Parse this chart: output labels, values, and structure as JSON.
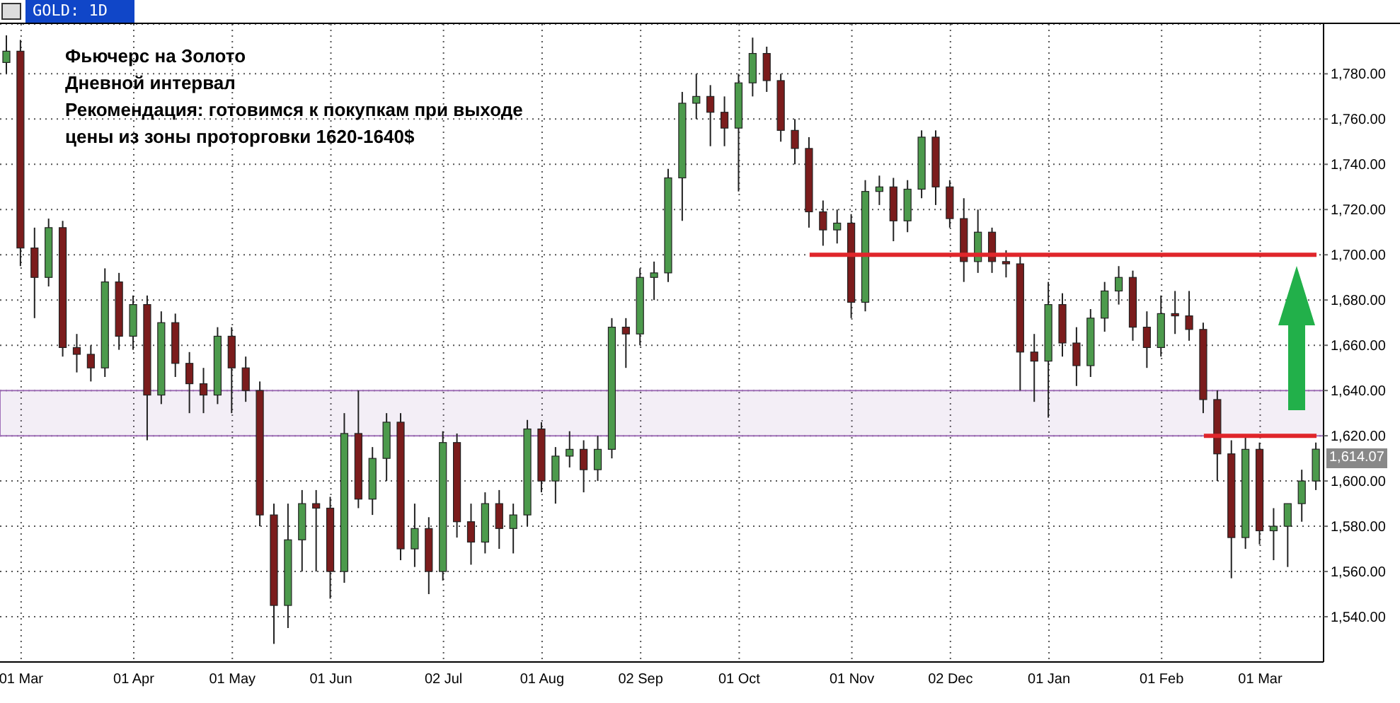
{
  "chart_data": {
    "type": "candlestick",
    "title": "GOLD: 1D",
    "annotations": [
      "Фьючерс на Золото",
      "Дневной интервал",
      "Рекомендация: готовимся к покупкам при выходе",
      "цены из зоны проторговки 1620-1640$",
      "1,614.07"
    ],
    "categories": [
      null,
      "01 Mar",
      null,
      null,
      null,
      null,
      null,
      null,
      null,
      "01 Apr",
      null,
      null,
      null,
      null,
      null,
      null,
      "01 May",
      null,
      null,
      null,
      null,
      null,
      null,
      "01 Jun",
      null,
      null,
      null,
      null,
      null,
      null,
      null,
      "02 Jul",
      null,
      null,
      null,
      null,
      null,
      null,
      "01 Aug",
      null,
      null,
      null,
      null,
      null,
      null,
      "02 Sep",
      null,
      null,
      null,
      null,
      null,
      null,
      "01 Oct",
      null,
      null,
      null,
      null,
      null,
      null,
      null,
      "01 Nov",
      null,
      null,
      null,
      null,
      null,
      null,
      "02 Dec",
      null,
      null,
      null,
      null,
      null,
      null,
      "01 Jan",
      null,
      null,
      null,
      null,
      null,
      null,
      null,
      "01 Feb",
      null,
      null,
      null,
      null,
      null,
      null,
      "01 Mar",
      null,
      null,
      null,
      null
    ],
    "ohlc": [
      [
        1785,
        1797,
        1780,
        1790
      ],
      [
        1790,
        1795,
        1695,
        1703
      ],
      [
        1703,
        1712,
        1672,
        1690
      ],
      [
        1690,
        1716,
        1686,
        1712
      ],
      [
        1712,
        1715,
        1655,
        1659
      ],
      [
        1659,
        1665,
        1648,
        1656
      ],
      [
        1656,
        1660,
        1644,
        1650
      ],
      [
        1650,
        1694,
        1646,
        1688
      ],
      [
        1688,
        1692,
        1658,
        1664
      ],
      [
        1664,
        1682,
        1658,
        1678
      ],
      [
        1678,
        1682,
        1618,
        1638
      ],
      [
        1638,
        1675,
        1634,
        1670
      ],
      [
        1670,
        1674,
        1646,
        1652
      ],
      [
        1652,
        1657,
        1630,
        1643
      ],
      [
        1643,
        1650,
        1630,
        1638
      ],
      [
        1638,
        1668,
        1634,
        1664
      ],
      [
        1664,
        1668,
        1630,
        1650
      ],
      [
        1650,
        1655,
        1635,
        1640
      ],
      [
        1640,
        1644,
        1580,
        1585
      ],
      [
        1585,
        1590,
        1528,
        1545
      ],
      [
        1545,
        1590,
        1535,
        1574
      ],
      [
        1574,
        1596,
        1560,
        1590
      ],
      [
        1590,
        1596,
        1560,
        1588
      ],
      [
        1588,
        1593,
        1548,
        1560
      ],
      [
        1560,
        1630,
        1555,
        1621
      ],
      [
        1621,
        1640,
        1588,
        1592
      ],
      [
        1592,
        1615,
        1585,
        1610
      ],
      [
        1610,
        1630,
        1600,
        1626
      ],
      [
        1626,
        1630,
        1565,
        1570
      ],
      [
        1570,
        1590,
        1562,
        1579
      ],
      [
        1579,
        1584,
        1550,
        1560
      ],
      [
        1560,
        1622,
        1556,
        1617
      ],
      [
        1617,
        1621,
        1575,
        1582
      ],
      [
        1582,
        1590,
        1563,
        1573
      ],
      [
        1573,
        1595,
        1568,
        1590
      ],
      [
        1590,
        1596,
        1570,
        1579
      ],
      [
        1579,
        1590,
        1568,
        1585
      ],
      [
        1585,
        1627,
        1580,
        1623
      ],
      [
        1623,
        1626,
        1595,
        1600
      ],
      [
        1600,
        1615,
        1590,
        1611
      ],
      [
        1611,
        1622,
        1606,
        1614
      ],
      [
        1614,
        1618,
        1595,
        1605
      ],
      [
        1605,
        1620,
        1600,
        1614
      ],
      [
        1614,
        1672,
        1610,
        1668
      ],
      [
        1668,
        1672,
        1650,
        1665
      ],
      [
        1665,
        1694,
        1660,
        1690
      ],
      [
        1690,
        1697,
        1680,
        1692
      ],
      [
        1692,
        1738,
        1688,
        1734
      ],
      [
        1734,
        1772,
        1715,
        1767
      ],
      [
        1767,
        1780,
        1760,
        1770
      ],
      [
        1770,
        1775,
        1748,
        1763
      ],
      [
        1763,
        1770,
        1748,
        1756
      ],
      [
        1756,
        1780,
        1728,
        1776
      ],
      [
        1776,
        1796,
        1770,
        1789
      ],
      [
        1789,
        1792,
        1772,
        1777
      ],
      [
        1777,
        1780,
        1750,
        1755
      ],
      [
        1755,
        1760,
        1740,
        1747
      ],
      [
        1747,
        1752,
        1712,
        1719
      ],
      [
        1719,
        1724,
        1704,
        1711
      ],
      [
        1711,
        1720,
        1705,
        1714
      ],
      [
        1714,
        1718,
        1672,
        1679
      ],
      [
        1679,
        1733,
        1675,
        1728
      ],
      [
        1728,
        1735,
        1722,
        1730
      ],
      [
        1730,
        1734,
        1706,
        1715
      ],
      [
        1715,
        1733,
        1710,
        1729
      ],
      [
        1729,
        1755,
        1725,
        1752
      ],
      [
        1752,
        1755,
        1722,
        1730
      ],
      [
        1730,
        1733,
        1712,
        1716
      ],
      [
        1716,
        1725,
        1688,
        1697
      ],
      [
        1697,
        1720,
        1692,
        1710
      ],
      [
        1710,
        1712,
        1692,
        1697
      ],
      [
        1697,
        1702,
        1690,
        1696
      ],
      [
        1696,
        1700,
        1640,
        1657
      ],
      [
        1657,
        1665,
        1635,
        1653
      ],
      [
        1653,
        1688,
        1628,
        1678
      ],
      [
        1678,
        1683,
        1655,
        1661
      ],
      [
        1661,
        1668,
        1642,
        1651
      ],
      [
        1651,
        1676,
        1646,
        1672
      ],
      [
        1672,
        1688,
        1666,
        1684
      ],
      [
        1684,
        1695,
        1678,
        1690
      ],
      [
        1690,
        1693,
        1662,
        1668
      ],
      [
        1668,
        1675,
        1650,
        1659
      ],
      [
        1659,
        1682,
        1655,
        1674
      ],
      [
        1674,
        1684,
        1665,
        1673
      ],
      [
        1673,
        1684,
        1662,
        1667
      ],
      [
        1667,
        1670,
        1630,
        1636
      ],
      [
        1636,
        1640,
        1600,
        1612
      ],
      [
        1612,
        1618,
        1557,
        1575
      ],
      [
        1575,
        1620,
        1570,
        1614
      ],
      [
        1614,
        1617,
        1572,
        1578
      ],
      [
        1578,
        1588,
        1565,
        1580
      ],
      [
        1580,
        1590,
        1562,
        1590
      ],
      [
        1590,
        1605,
        1582,
        1600
      ],
      [
        1600,
        1617,
        1596,
        1614.07
      ]
    ],
    "colors": [
      "#4c9a4c",
      "#7b1c1c",
      "#7b1c1c",
      "#4c9a4c",
      "#7b1c1c",
      "#7b1c1c",
      "#7b1c1c",
      "#4c9a4c",
      "#7b1c1c",
      "#4c9a4c",
      "#7b1c1c",
      "#4c9a4c",
      "#7b1c1c",
      "#7b1c1c",
      "#7b1c1c",
      "#4c9a4c",
      "#7b1c1c",
      "#7b1c1c",
      "#7b1c1c",
      "#7b1c1c",
      "#4c9a4c",
      "#4c9a4c",
      "#7b1c1c",
      "#7b1c1c",
      "#4c9a4c",
      "#7b1c1c",
      "#4c9a4c",
      "#4c9a4c",
      "#7b1c1c",
      "#4c9a4c",
      "#7b1c1c",
      "#4c9a4c",
      "#7b1c1c",
      "#7b1c1c",
      "#4c9a4c",
      "#7b1c1c",
      "#4c9a4c",
      "#4c9a4c",
      "#7b1c1c",
      "#4c9a4c",
      "#4c9a4c",
      "#7b1c1c",
      "#4c9a4c",
      "#4c9a4c",
      "#7b1c1c",
      "#4c9a4c",
      "#4c9a4c",
      "#4c9a4c",
      "#4c9a4c",
      "#4c9a4c",
      "#7b1c1c",
      "#7b1c1c",
      "#4c9a4c",
      "#4c9a4c",
      "#7b1c1c",
      "#7b1c1c",
      "#7b1c1c",
      "#7b1c1c",
      "#7b1c1c",
      "#4c9a4c",
      "#7b1c1c",
      "#4c9a4c",
      "#4c9a4c",
      "#7b1c1c",
      "#4c9a4c",
      "#4c9a4c",
      "#7b1c1c",
      "#7b1c1c",
      "#7b1c1c",
      "#4c9a4c",
      "#7b1c1c",
      "#7b1c1c",
      "#7b1c1c",
      "#7b1c1c",
      "#4c9a4c",
      "#7b1c1c",
      "#7b1c1c",
      "#4c9a4c",
      "#4c9a4c",
      "#4c9a4c",
      "#7b1c1c",
      "#7b1c1c",
      "#4c9a4c",
      "#7b1c1c",
      "#7b1c1c",
      "#7b1c1c",
      "#7b1c1c",
      "#7b1c1c",
      "#4c9a4c",
      "#7b1c1c",
      "#4c9a4c",
      "#4c9a4c",
      "#4c9a4c",
      "#4c9a4c"
    ],
    "series": [
      {
        "type": "line",
        "color": "#e0262b",
        "values": [
          null,
          null,
          null,
          null,
          null,
          null,
          null,
          null,
          null,
          null,
          null,
          null,
          null,
          null,
          null,
          null,
          null,
          null,
          null,
          null,
          null,
          null,
          null,
          null,
          null,
          null,
          null,
          null,
          null,
          null,
          null,
          null,
          null,
          null,
          null,
          null,
          null,
          null,
          null,
          null,
          null,
          null,
          null,
          null,
          null,
          null,
          null,
          null,
          null,
          null,
          null,
          null,
          null,
          null,
          null,
          null,
          null,
          1700,
          1700,
          1700,
          1700,
          1700,
          1700,
          1700,
          1700,
          1700,
          1700,
          1700,
          1700,
          1700,
          1700,
          1700,
          1700,
          1700,
          1700,
          1700,
          1700,
          1700,
          1700,
          1700,
          1700,
          1700,
          1700,
          1700,
          1700,
          1700,
          1700,
          1700,
          1700,
          1700,
          1700,
          1700,
          1700,
          1700
        ]
      },
      {
        "type": "line",
        "color": "#e0262b",
        "values": [
          null,
          null,
          null,
          null,
          null,
          null,
          null,
          null,
          null,
          null,
          null,
          null,
          null,
          null,
          null,
          null,
          null,
          null,
          null,
          null,
          null,
          null,
          null,
          null,
          null,
          null,
          null,
          null,
          null,
          null,
          null,
          null,
          null,
          null,
          null,
          null,
          null,
          null,
          null,
          null,
          null,
          null,
          null,
          null,
          null,
          null,
          null,
          null,
          null,
          null,
          null,
          null,
          null,
          null,
          null,
          null,
          null,
          null,
          null,
          null,
          null,
          null,
          null,
          null,
          null,
          null,
          null,
          null,
          null,
          null,
          null,
          null,
          null,
          null,
          null,
          null,
          null,
          null,
          null,
          null,
          null,
          null,
          null,
          null,
          null,
          1620,
          1620,
          1620,
          1620,
          1620,
          1620,
          1620,
          1620,
          1620
        ]
      }
    ],
    "bands": [
      {
        "axis": "y",
        "from": 1620,
        "to": 1640,
        "color": "#a070b8"
      }
    ],
    "ylim": [
      1520,
      1802
    ],
    "yticks": [
      {
        "value": 1540,
        "label": "1,540.00"
      },
      {
        "value": 1560,
        "label": "1,560.00"
      },
      {
        "value": 1580,
        "label": "1,580.00"
      },
      {
        "value": 1600,
        "label": "1,600.00"
      },
      {
        "value": 1620,
        "label": "1,620.00"
      },
      {
        "value": 1640,
        "label": "1,640.00"
      },
      {
        "value": 1660,
        "label": "1,660.00"
      },
      {
        "value": 1680,
        "label": "1,680.00"
      },
      {
        "value": 1700,
        "label": "1,700.00"
      },
      {
        "value": 1720,
        "label": "1,720.00"
      },
      {
        "value": 1740,
        "label": "1,740.00"
      },
      {
        "value": 1760,
        "label": "1,760.00"
      },
      {
        "value": 1780,
        "label": "1,780.00"
      }
    ],
    "grid": true
  }
}
